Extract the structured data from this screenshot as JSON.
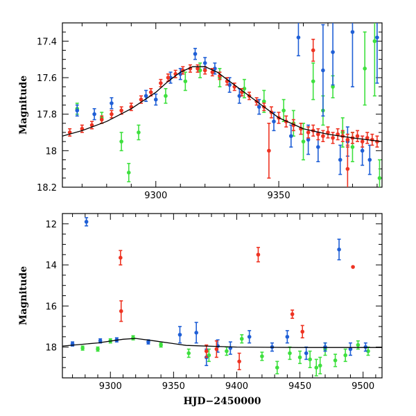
{
  "colors": {
    "blue": "#1f5fd6",
    "green": "#3ee03e",
    "red": "#ee3322",
    "axis": "#000000"
  },
  "chart_data": [
    {
      "type": "scatter",
      "title": "",
      "xlabel": "",
      "ylabel": "Magnitude",
      "xlim": [
        9262,
        9392
      ],
      "ylim": [
        18.2,
        17.3
      ],
      "x_ticks": [
        9300,
        9350
      ],
      "y_ticks": [
        17.4,
        17.6,
        17.8,
        18,
        18.2
      ],
      "x_tick_labels": [
        "9300",
        "9350"
      ],
      "y_tick_labels": [
        "17.4",
        "17.6",
        "17.8",
        "18",
        "18.2"
      ],
      "model_curve": {
        "x": [
          9262,
          9270,
          9280,
          9290,
          9300,
          9305,
          9310,
          9315,
          9320,
          9325,
          9330,
          9340,
          9350,
          9360,
          9370,
          9380,
          9392
        ],
        "y": [
          17.92,
          17.89,
          17.84,
          17.77,
          17.68,
          17.62,
          17.57,
          17.54,
          17.54,
          17.57,
          17.62,
          17.72,
          17.82,
          17.88,
          17.91,
          17.93,
          17.95
        ]
      },
      "series": [
        {
          "name": "blue",
          "color": "#1f5fd6",
          "x": [
            9268,
            9275,
            9282,
            9296,
            9300,
            9306,
            9310,
            9316,
            9320,
            9324,
            9330,
            9334,
            9342,
            9348,
            9355,
            9358,
            9362,
            9366,
            9368,
            9372,
            9375,
            9378,
            9380,
            9384,
            9387,
            9390
          ],
          "y": [
            17.78,
            17.8,
            17.74,
            17.7,
            17.72,
            17.6,
            17.58,
            17.47,
            17.52,
            17.55,
            17.64,
            17.7,
            17.76,
            17.84,
            17.92,
            17.38,
            17.94,
            17.98,
            17.56,
            17.46,
            18.05,
            17.95,
            17.35,
            18.0,
            18.05,
            17.38
          ],
          "err": [
            0.03,
            0.03,
            0.03,
            0.03,
            0.03,
            0.03,
            0.03,
            0.03,
            0.03,
            0.03,
            0.04,
            0.04,
            0.04,
            0.05,
            0.06,
            0.1,
            0.08,
            0.08,
            0.25,
            0.18,
            0.08,
            0.08,
            0.3,
            0.08,
            0.08,
            0.25
          ]
        },
        {
          "name": "green",
          "color": "#3ee03e",
          "x": [
            9268,
            9278,
            9286,
            9289,
            9293,
            9304,
            9312,
            9318,
            9326,
            9336,
            9344,
            9352,
            9356,
            9360,
            9364,
            9368,
            9372,
            9376,
            9380,
            9385,
            9389,
            9391
          ],
          "y": [
            17.77,
            17.82,
            17.95,
            18.12,
            17.9,
            17.7,
            17.62,
            17.56,
            17.6,
            17.66,
            17.73,
            17.78,
            17.85,
            17.95,
            17.62,
            17.78,
            17.65,
            17.9,
            17.98,
            17.55,
            17.4,
            18.15
          ],
          "err": [
            0.03,
            0.03,
            0.05,
            0.05,
            0.04,
            0.04,
            0.05,
            0.04,
            0.05,
            0.05,
            0.06,
            0.06,
            0.07,
            0.1,
            0.1,
            0.08,
            0.06,
            0.08,
            0.08,
            0.2,
            0.3,
            0.1
          ]
        },
        {
          "name": "red",
          "color": "#ee3322",
          "x": [
            9265,
            9270,
            9274,
            9278,
            9282,
            9286,
            9290,
            9294,
            9298,
            9302,
            9305,
            9308,
            9311,
            9314,
            9317,
            9320,
            9323,
            9326,
            9329,
            9332,
            9335,
            9338,
            9341,
            9344,
            9347,
            9350,
            9353,
            9356,
            9359,
            9362,
            9364,
            9366,
            9368,
            9370,
            9372,
            9374,
            9376,
            9378,
            9380,
            9382,
            9384,
            9386,
            9388,
            9390,
            9346,
            9364,
            9378
          ],
          "y": [
            17.9,
            17.88,
            17.86,
            17.83,
            17.8,
            17.78,
            17.76,
            17.72,
            17.68,
            17.63,
            17.6,
            17.58,
            17.56,
            17.55,
            17.55,
            17.56,
            17.57,
            17.59,
            17.62,
            17.65,
            17.68,
            17.7,
            17.73,
            17.76,
            17.79,
            17.82,
            17.84,
            17.86,
            17.88,
            17.9,
            17.89,
            17.91,
            17.92,
            17.9,
            17.93,
            17.91,
            17.92,
            17.94,
            17.93,
            17.92,
            17.95,
            17.93,
            17.94,
            17.95,
            18.0,
            17.45,
            18.1
          ],
          "err": [
            0.02,
            0.02,
            0.02,
            0.02,
            0.02,
            0.02,
            0.02,
            0.02,
            0.02,
            0.02,
            0.02,
            0.02,
            0.02,
            0.02,
            0.02,
            0.02,
            0.02,
            0.02,
            0.02,
            0.02,
            0.02,
            0.02,
            0.02,
            0.02,
            0.03,
            0.03,
            0.03,
            0.03,
            0.03,
            0.03,
            0.03,
            0.03,
            0.03,
            0.03,
            0.03,
            0.03,
            0.03,
            0.03,
            0.03,
            0.03,
            0.03,
            0.03,
            0.03,
            0.03,
            0.15,
            0.06,
            0.12
          ]
        }
      ]
    },
    {
      "type": "scatter",
      "title": "",
      "xlabel": "HJD−2450000",
      "ylabel": "Magnitude",
      "xlim": [
        9262,
        9515
      ],
      "ylim": [
        19.5,
        11.5
      ],
      "x_ticks": [
        9300,
        9350,
        9400,
        9450,
        9500
      ],
      "y_ticks": [
        12,
        14,
        16,
        18
      ],
      "x_tick_labels": [
        "9300",
        "9350",
        "9400",
        "9450",
        "9500"
      ],
      "y_tick_labels": [
        "12",
        "14",
        "16",
        "18"
      ],
      "model_curve": {
        "x": [
          9262,
          9290,
          9310,
          9320,
          9335,
          9360,
          9400,
          9450,
          9515
        ],
        "y": [
          17.95,
          17.8,
          17.62,
          17.58,
          17.7,
          17.92,
          18.0,
          18.02,
          18.02
        ]
      },
      "series": [
        {
          "name": "blue",
          "color": "#1f5fd6",
          "x": [
            9270,
            9281,
            9292,
            9305,
            9330,
            9355,
            9368,
            9376,
            9385,
            9395,
            9410,
            9428,
            9440,
            9455,
            9470,
            9481,
            9490,
            9502
          ],
          "y": [
            17.85,
            11.9,
            17.7,
            17.65,
            17.75,
            17.4,
            17.3,
            18.5,
            17.95,
            18.05,
            17.5,
            18.0,
            17.5,
            18.3,
            18.0,
            13.25,
            18.1,
            18.0
          ],
          "err": [
            0.1,
            0.2,
            0.1,
            0.1,
            0.1,
            0.4,
            0.5,
            0.4,
            0.3,
            0.3,
            0.3,
            0.2,
            0.3,
            0.3,
            0.2,
            0.5,
            0.3,
            0.2
          ]
        },
        {
          "name": "green",
          "color": "#3ee03e",
          "x": [
            9278,
            9290,
            9300,
            9318,
            9340,
            9362,
            9378,
            9392,
            9404,
            9420,
            9432,
            9442,
            9450,
            9458,
            9463,
            9466,
            9470,
            9478,
            9486,
            9496,
            9504
          ],
          "y": [
            18.05,
            18.1,
            17.7,
            17.55,
            17.9,
            18.3,
            18.4,
            18.2,
            17.6,
            18.45,
            19.0,
            18.3,
            18.5,
            18.6,
            19.0,
            18.9,
            18.1,
            18.65,
            18.4,
            17.9,
            18.2
          ],
          "err": [
            0.1,
            0.1,
            0.1,
            0.1,
            0.1,
            0.2,
            0.3,
            0.2,
            0.2,
            0.2,
            0.3,
            0.3,
            0.3,
            0.4,
            0.4,
            0.4,
            0.3,
            0.3,
            0.3,
            0.2,
            0.2
          ]
        },
        {
          "name": "red",
          "color": "#ee3322",
          "x": [
            9308,
            9308.5,
            9417,
            9444,
            9452,
            9492,
            9384,
            9402,
            9376
          ],
          "y": [
            13.65,
            16.25,
            13.5,
            16.4,
            17.25,
            14.1,
            18.1,
            18.7,
            18.2
          ],
          "err": [
            0.35,
            0.5,
            0.35,
            0.2,
            0.3,
            0.0,
            0.4,
            0.4,
            0.3
          ]
        }
      ]
    }
  ]
}
